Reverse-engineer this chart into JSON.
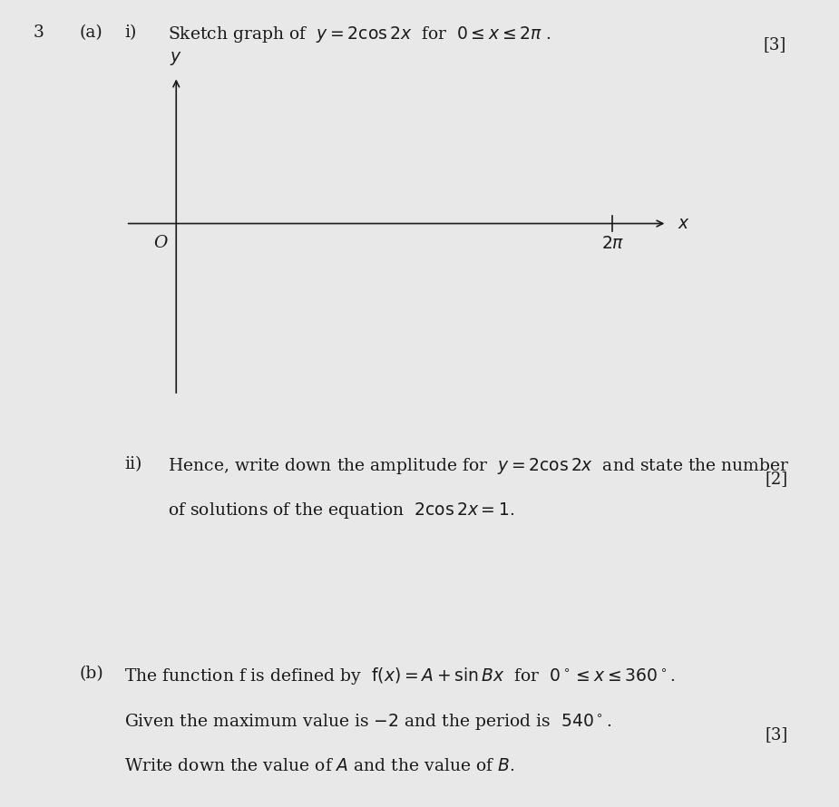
{
  "bg_color": "#e8e8e8",
  "fig_width": 9.25,
  "fig_height": 8.9,
  "question_number": "3",
  "part_a_label": "(a)",
  "part_i_label": "i)",
  "part_i_text": "Sketch graph of  $y = 2\\cos 2x$  for  $0 \\leq x \\leq 2\\pi$ .",
  "marks_i": "[3]",
  "axis_origin_label": "O",
  "axis_x_label": "$x$",
  "axis_y_label": "$y$",
  "axis_2pi_label": "$2\\pi$",
  "part_ii_label": "ii)",
  "part_ii_line1": "Hence, write down the amplitude for  $y = 2\\cos 2x$  and state the number",
  "part_ii_line2": "of solutions of the equation  $2\\cos 2x = 1$.",
  "marks_ii": "[2]",
  "part_b_label": "(b)",
  "part_b_line1": "The function f is defined by  $\\mathrm{f}(x) = A + \\sin Bx$  for  $0^\\circ \\leq x \\leq 360^\\circ$.",
  "part_b_line2": "Given the maximum value is $-2$ and the period is  $540^\\circ$.",
  "part_b_line3": "Write down the value of $A$ and the value of $B$.",
  "marks_b": "[3]",
  "text_color": "#1a1a1a",
  "axis_color": "#1a1a1a",
  "font_size_main": 13.5,
  "font_size_marks": 13.0
}
